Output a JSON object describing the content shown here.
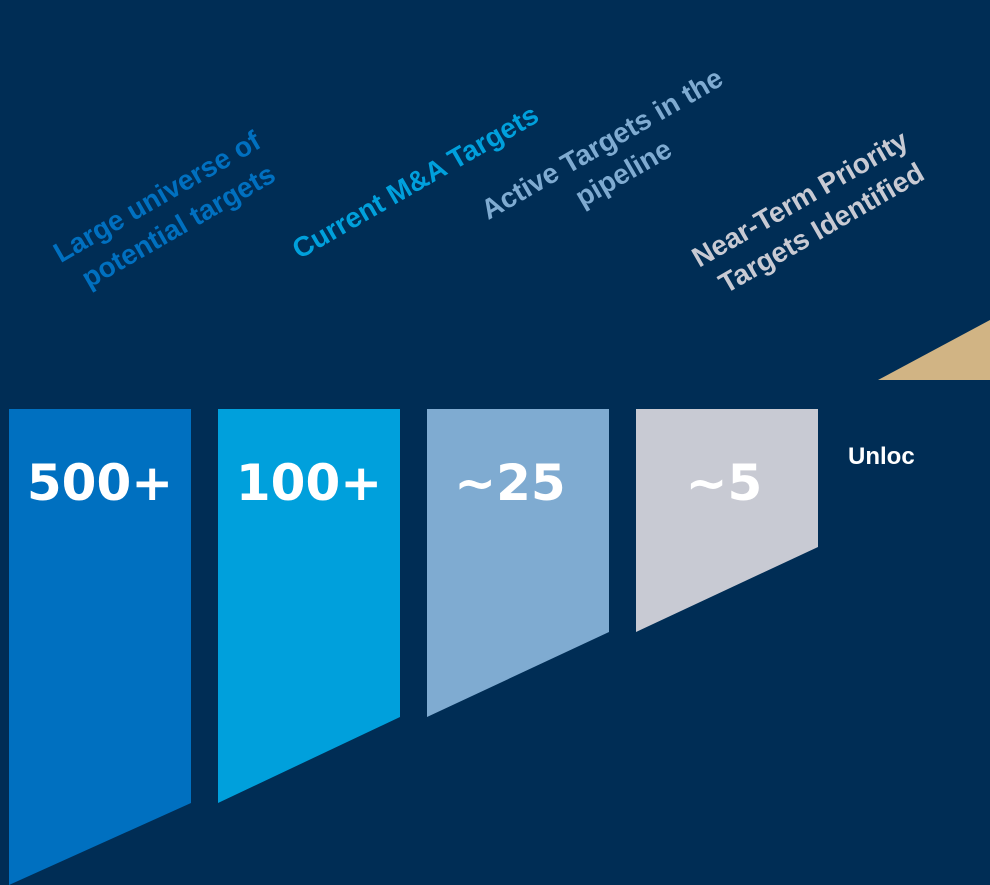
{
  "diagram": {
    "background_color": "#002d55",
    "stages": [
      {
        "value": "500+",
        "label_line1": "Large universe of",
        "label_line2": "potential targets",
        "fill_color": "#0070c0",
        "label_color": "#0070c0"
      },
      {
        "value": "100+",
        "label_line1": "Current M&A Targets",
        "label_line2": "",
        "fill_color": "#00a0dc",
        "label_color": "#00a0dc"
      },
      {
        "value": "~25",
        "label_line1": "Active Targets in the",
        "label_line2": "pipeline",
        "fill_color": "#7fabd1",
        "label_color": "#7fabd1"
      },
      {
        "value": "~5",
        "label_line1": "Near-Term Priority",
        "label_line2": "Targets Identified",
        "fill_color": "#c8cad3",
        "label_color": "#c8cad3"
      }
    ],
    "arrow_color": "#d1b484",
    "unlock_text": "Unloc"
  }
}
